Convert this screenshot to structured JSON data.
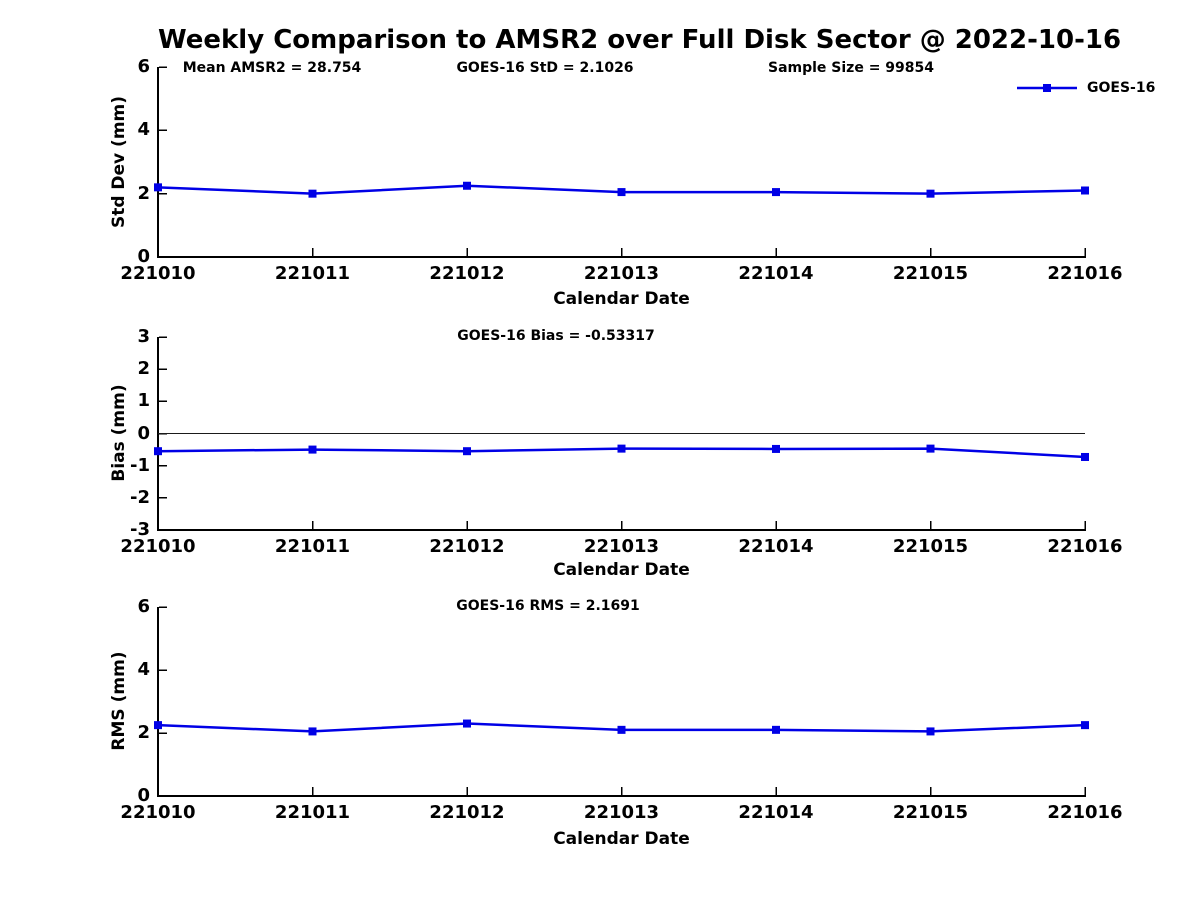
{
  "title": "Weekly Comparison to AMSR2 over Full Disk Sector @ 2022-10-16",
  "line_color": "#0000e6",
  "axis_color": "#000000",
  "chart_data": [
    {
      "type": "line",
      "name": "std-dev-panel",
      "ylabel": "Std Dev (mm)",
      "xlabel": "Calendar Date",
      "categories": [
        "221010",
        "221011",
        "221012",
        "221013",
        "221014",
        "221015",
        "221016"
      ],
      "yticks": [
        0,
        2,
        4,
        6
      ],
      "ylim": [
        0,
        6
      ],
      "grid": false,
      "annotations": [
        "Mean AMSR2 = 28.754",
        "GOES-16 StD = 2.1026",
        "Sample Size = 99854"
      ],
      "legend": {
        "label": "GOES-16",
        "position": "top-right"
      },
      "series": [
        {
          "name": "GOES-16",
          "marker": "square",
          "values": [
            2.2,
            2.0,
            2.25,
            2.05,
            2.05,
            2.0,
            2.1
          ]
        }
      ]
    },
    {
      "type": "line",
      "name": "bias-panel",
      "ylabel": "Bias (mm)",
      "xlabel": "Calendar Date",
      "categories": [
        "221010",
        "221011",
        "221012",
        "221013",
        "221014",
        "221015",
        "221016"
      ],
      "yticks": [
        -3,
        -2,
        -1,
        0,
        1,
        2,
        3
      ],
      "ylim": [
        -3,
        3
      ],
      "grid": false,
      "zero_line": true,
      "annotations": [
        "GOES-16 Bias  = -0.53317"
      ],
      "series": [
        {
          "name": "GOES-16",
          "marker": "square",
          "values": [
            -0.55,
            -0.5,
            -0.55,
            -0.47,
            -0.48,
            -0.47,
            -0.73
          ]
        }
      ]
    },
    {
      "type": "line",
      "name": "rms-panel",
      "ylabel": "RMS (mm)",
      "xlabel": "Calendar Date",
      "categories": [
        "221010",
        "221011",
        "221012",
        "221013",
        "221014",
        "221015",
        "221016"
      ],
      "yticks": [
        0,
        2,
        4,
        6
      ],
      "ylim": [
        0,
        6
      ],
      "grid": false,
      "annotations": [
        "GOES-16 RMS = 2.1691"
      ],
      "series": [
        {
          "name": "GOES-16",
          "marker": "square",
          "values": [
            2.25,
            2.05,
            2.3,
            2.1,
            2.1,
            2.05,
            2.25
          ]
        }
      ]
    }
  ]
}
